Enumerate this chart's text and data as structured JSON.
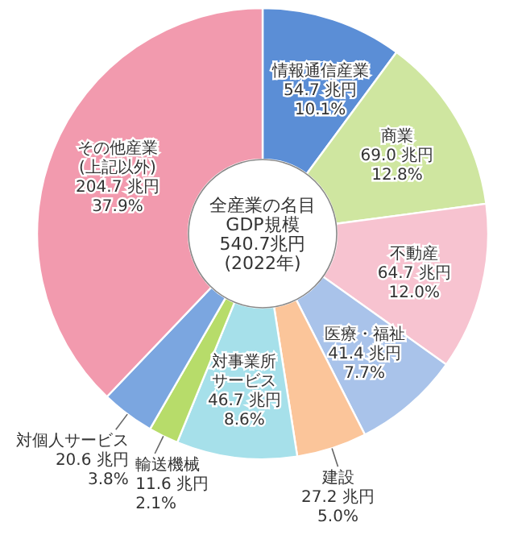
{
  "chart_data": {
    "type": "donut",
    "title": "全産業の名目GDP規模",
    "subtitle": "540.7兆円(2022年)",
    "categories": [
      "情報通信産業",
      "商業",
      "不動産",
      "医療・福祉",
      "建設",
      "対事業所サービス",
      "輸送機械",
      "対個人サービス",
      "その他産業(上記以外)"
    ],
    "values": [
      54.7,
      69.0,
      64.7,
      41.4,
      27.2,
      46.7,
      11.6,
      20.6,
      204.7
    ],
    "value_labels": [
      "54.7 兆円 10.1%",
      "69.0 兆円 12.8%",
      "64.7 兆円 12.0%",
      "41.4 兆円 7.7%",
      "27.2 兆円 5.0%",
      "46.7 兆円 8.6%",
      "11.6 兆円 2.1%",
      "20.6 兆円 3.8%",
      "204.7 兆円 37.9%"
    ],
    "colors": [
      "#5b8ed6",
      "#cfe6a0",
      "#f7c3d0",
      "#a9c3ea",
      "#fbc59a",
      "#a6e0ea",
      "#b7dc6a",
      "#7ba6e0",
      "#f29aae"
    ]
  }
}
